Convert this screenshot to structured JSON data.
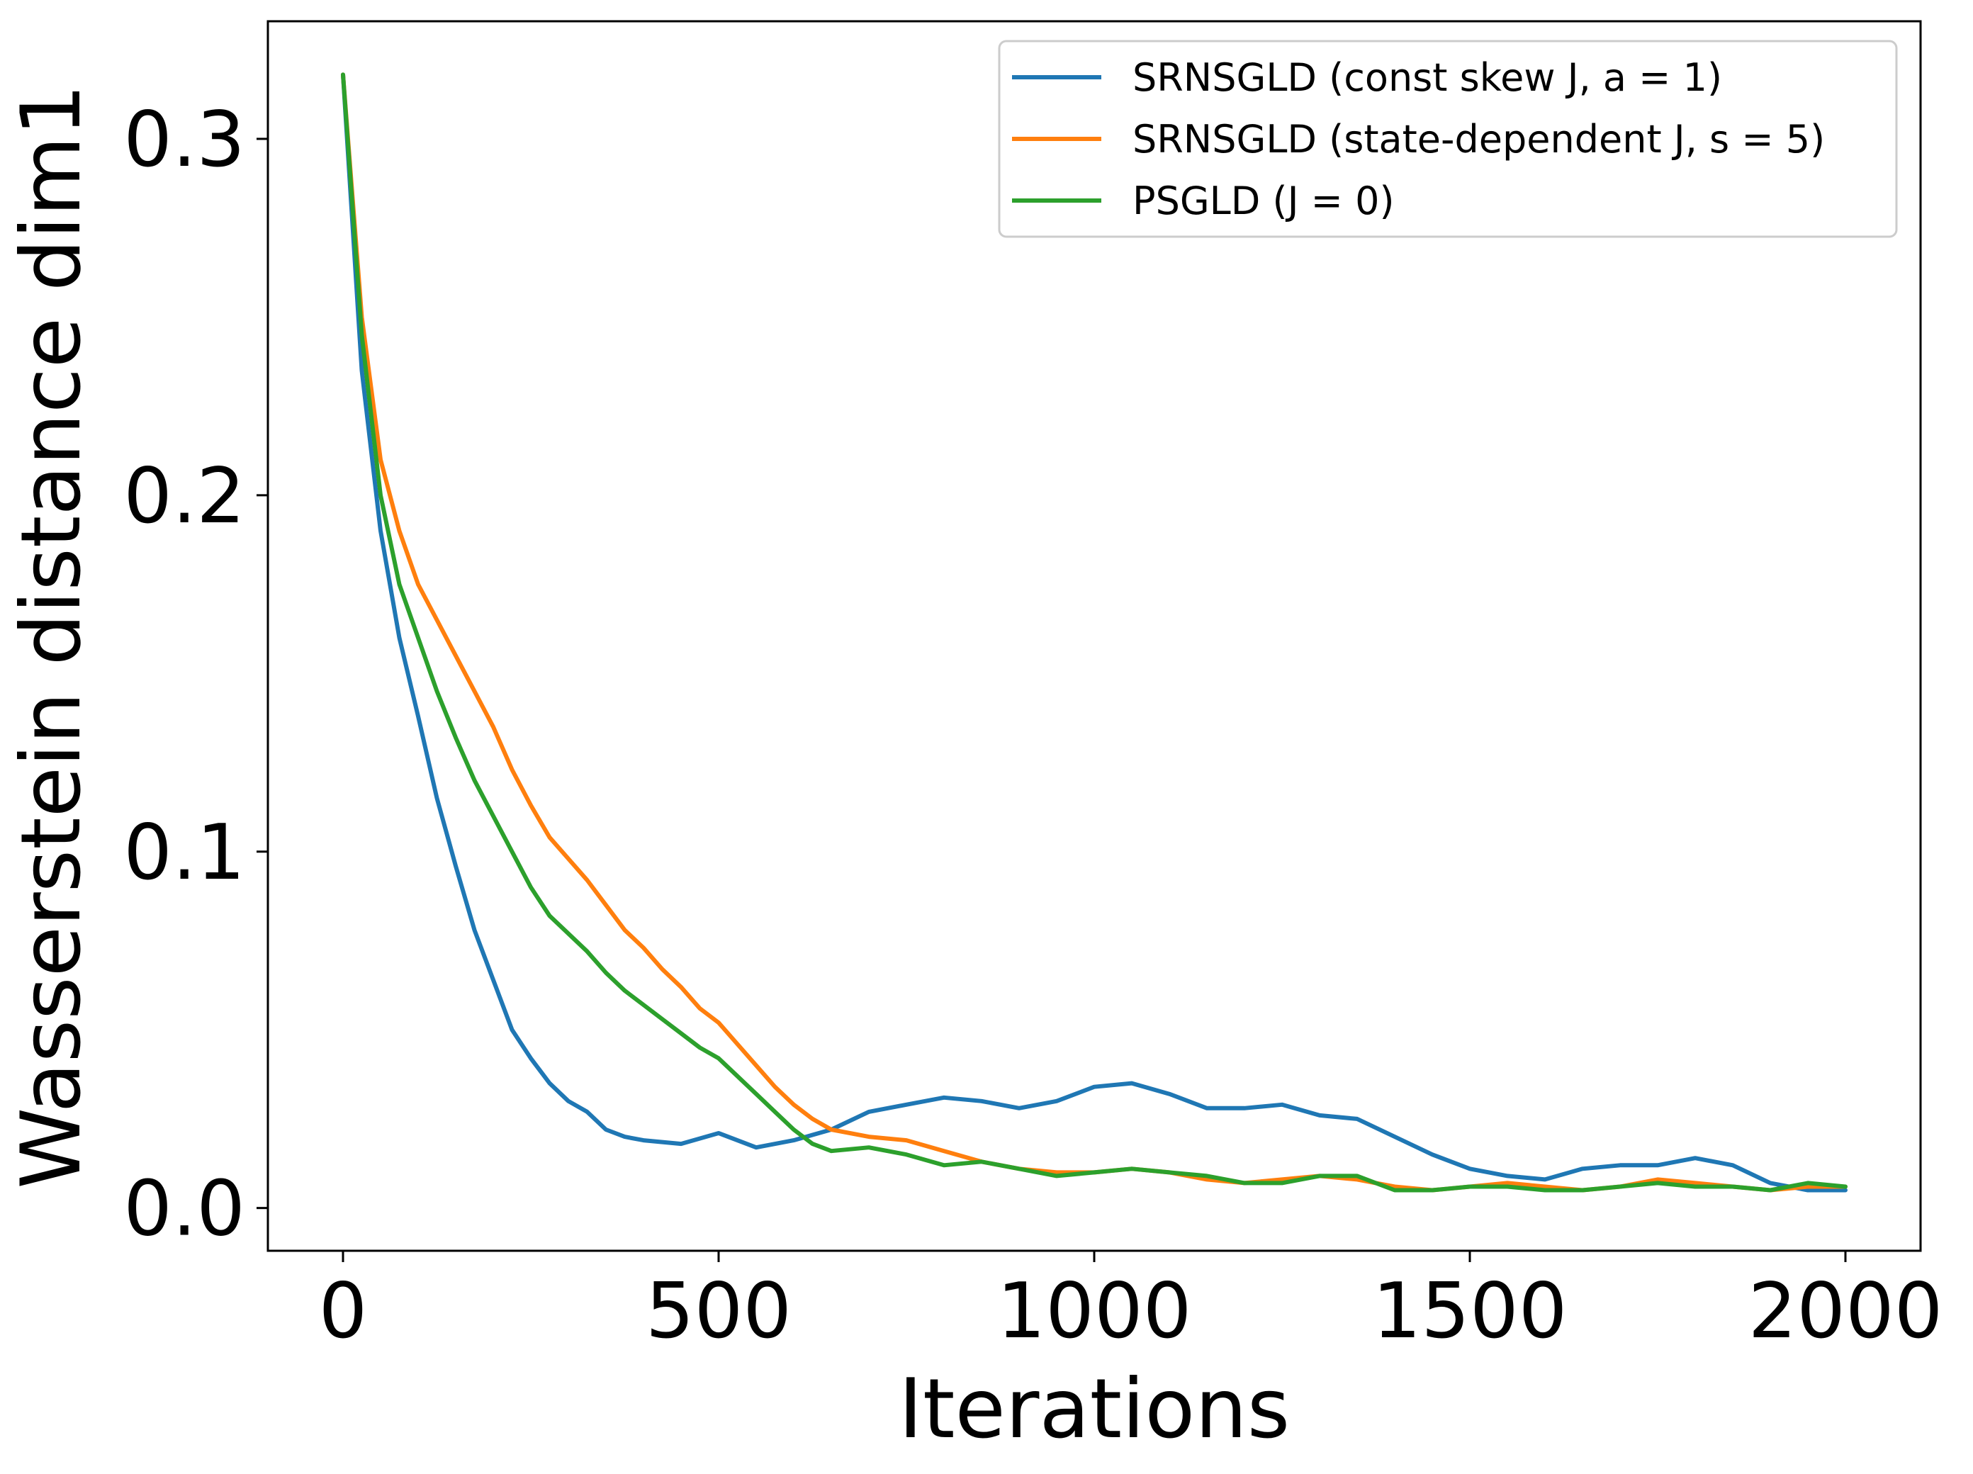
{
  "chart_data": {
    "type": "line",
    "title": "",
    "xlabel": "Iterations",
    "ylabel": "Wasserstein distance dim1",
    "xlim": [
      -100,
      2100
    ],
    "ylim": [
      -0.012,
      0.333
    ],
    "xticks": [
      0,
      500,
      1000,
      1500,
      2000
    ],
    "xtick_labels": [
      "0",
      "500",
      "1000",
      "1500",
      "2000"
    ],
    "yticks": [
      0.0,
      0.1,
      0.2,
      0.3
    ],
    "ytick_labels": [
      "0.0",
      "0.1",
      "0.2",
      "0.3"
    ],
    "grid": false,
    "legend_position": "top-right",
    "series": [
      {
        "name": "SRNSGLD (const skew J, a = 1)",
        "color": "#1f77b4",
        "x": [
          0,
          25,
          50,
          75,
          100,
          125,
          150,
          175,
          200,
          225,
          250,
          275,
          300,
          325,
          350,
          375,
          400,
          450,
          500,
          550,
          600,
          650,
          700,
          750,
          800,
          850,
          900,
          950,
          1000,
          1050,
          1100,
          1150,
          1200,
          1250,
          1300,
          1350,
          1400,
          1450,
          1500,
          1550,
          1600,
          1650,
          1700,
          1750,
          1800,
          1850,
          1900,
          1950,
          2000
        ],
        "y": [
          0.318,
          0.235,
          0.19,
          0.16,
          0.138,
          0.115,
          0.096,
          0.078,
          0.064,
          0.05,
          0.042,
          0.035,
          0.03,
          0.027,
          0.022,
          0.02,
          0.019,
          0.018,
          0.021,
          0.017,
          0.019,
          0.022,
          0.027,
          0.029,
          0.031,
          0.03,
          0.028,
          0.03,
          0.034,
          0.035,
          0.032,
          0.028,
          0.028,
          0.029,
          0.026,
          0.025,
          0.02,
          0.015,
          0.011,
          0.009,
          0.008,
          0.011,
          0.012,
          0.012,
          0.014,
          0.012,
          0.007,
          0.005,
          0.005
        ]
      },
      {
        "name": "SRNSGLD (state-dependent J, s = 5)",
        "color": "#ff7f0e",
        "x": [
          0,
          25,
          50,
          75,
          100,
          125,
          150,
          175,
          200,
          225,
          250,
          275,
          300,
          325,
          350,
          375,
          400,
          425,
          450,
          475,
          500,
          525,
          550,
          575,
          600,
          625,
          650,
          700,
          750,
          800,
          850,
          900,
          950,
          1000,
          1050,
          1100,
          1150,
          1200,
          1250,
          1300,
          1350,
          1400,
          1450,
          1500,
          1550,
          1600,
          1650,
          1700,
          1750,
          1800,
          1850,
          1900,
          1950,
          2000
        ],
        "y": [
          0.318,
          0.25,
          0.21,
          0.19,
          0.175,
          0.165,
          0.155,
          0.145,
          0.135,
          0.123,
          0.113,
          0.104,
          0.098,
          0.092,
          0.085,
          0.078,
          0.073,
          0.067,
          0.062,
          0.056,
          0.052,
          0.046,
          0.04,
          0.034,
          0.029,
          0.025,
          0.022,
          0.02,
          0.019,
          0.016,
          0.013,
          0.011,
          0.01,
          0.01,
          0.011,
          0.01,
          0.008,
          0.007,
          0.008,
          0.009,
          0.008,
          0.006,
          0.005,
          0.006,
          0.007,
          0.006,
          0.005,
          0.006,
          0.008,
          0.007,
          0.006,
          0.005,
          0.006,
          0.006
        ]
      },
      {
        "name": "PSGLD (J = 0)",
        "color": "#2ca02c",
        "x": [
          0,
          25,
          50,
          75,
          100,
          125,
          150,
          175,
          200,
          225,
          250,
          275,
          300,
          325,
          350,
          375,
          400,
          425,
          450,
          475,
          500,
          525,
          550,
          575,
          600,
          625,
          650,
          700,
          750,
          800,
          850,
          900,
          950,
          1000,
          1050,
          1100,
          1150,
          1200,
          1250,
          1300,
          1350,
          1400,
          1450,
          1500,
          1550,
          1600,
          1650,
          1700,
          1750,
          1800,
          1850,
          1900,
          1950,
          2000
        ],
        "y": [
          0.318,
          0.245,
          0.2,
          0.175,
          0.16,
          0.145,
          0.132,
          0.12,
          0.11,
          0.1,
          0.09,
          0.082,
          0.077,
          0.072,
          0.066,
          0.061,
          0.057,
          0.053,
          0.049,
          0.045,
          0.042,
          0.037,
          0.032,
          0.027,
          0.022,
          0.018,
          0.016,
          0.017,
          0.015,
          0.012,
          0.013,
          0.011,
          0.009,
          0.01,
          0.011,
          0.01,
          0.009,
          0.007,
          0.007,
          0.009,
          0.009,
          0.005,
          0.005,
          0.006,
          0.006,
          0.005,
          0.005,
          0.006,
          0.007,
          0.006,
          0.006,
          0.005,
          0.007,
          0.006
        ]
      }
    ]
  }
}
